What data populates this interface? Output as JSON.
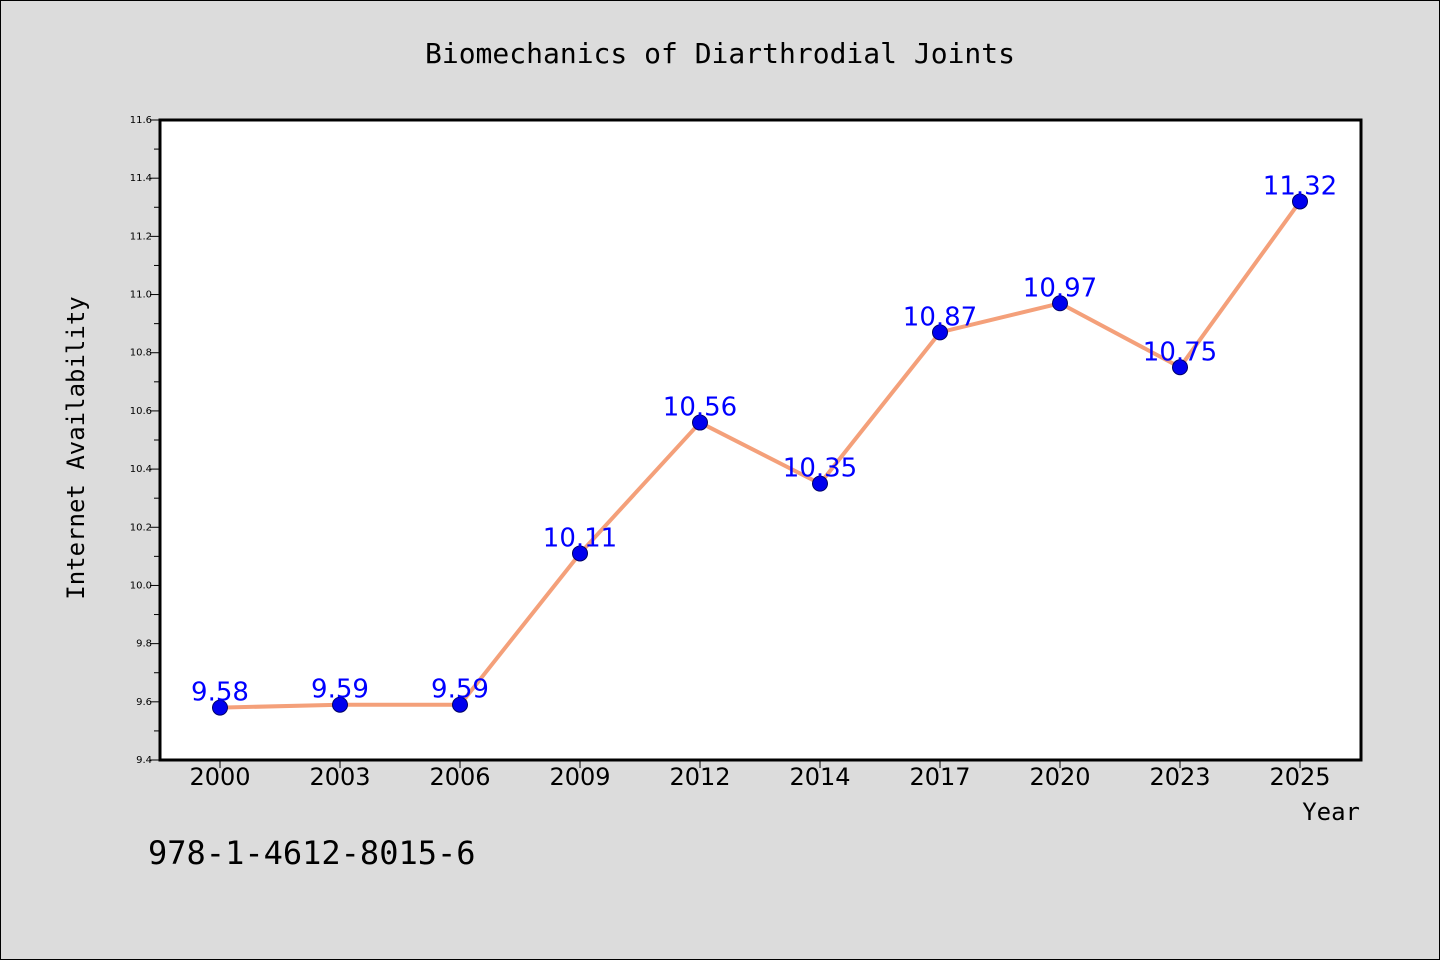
{
  "chart_data": {
    "type": "line",
    "title": "Biomechanics of Diarthrodial Joints",
    "xlabel": "Year",
    "ylabel": "Internet Availability",
    "categories": [
      "2000",
      "2003",
      "2006",
      "2009",
      "2012",
      "2014",
      "2017",
      "2020",
      "2023",
      "2025"
    ],
    "series": [
      {
        "values": [
          9.58,
          9.59,
          9.59,
          10.11,
          10.56,
          10.35,
          10.87,
          10.97,
          10.75,
          11.32
        ]
      }
    ],
    "data_labels": [
      "9.58",
      "9.59",
      "9.59",
      "10.11",
      "10.56",
      "10.35",
      "10.87",
      "10.97",
      "10.75",
      "11.32"
    ],
    "ylim": [
      9.4,
      11.6
    ],
    "yticks": [
      "9.4",
      "9.6",
      "9.8",
      "10.0",
      "10.2",
      "10.4",
      "10.6",
      "10.8",
      "11.0",
      "11.2",
      "11.4",
      "11.6"
    ],
    "grid": false,
    "legend": "none",
    "colors": {
      "line": "#f4a07a",
      "marker": "#0000ee",
      "marker_edge": "#000066",
      "data_label": "#0000ff",
      "plot_bg": "#ffffff",
      "page_bg": "#dcdcdc"
    }
  },
  "footer_text": "978-1-4612-8015-6"
}
